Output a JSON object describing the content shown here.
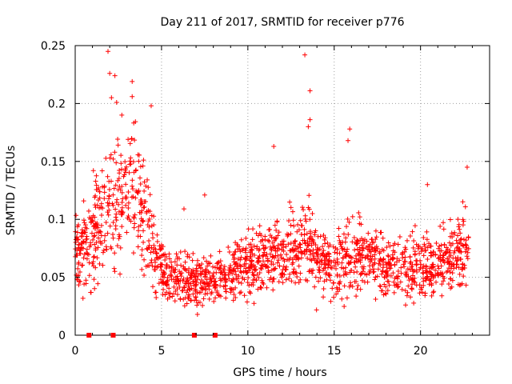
{
  "chart_data": {
    "type": "scatter",
    "title": "Day 211 of 2017, SRMTID for receiver p776",
    "xlabel": "GPS time / hours",
    "ylabel": "SRMTID / TECUs",
    "xlim": [
      0,
      24
    ],
    "ylim": [
      0,
      0.25
    ],
    "grid": true,
    "marker": "+",
    "color": "#ff0000",
    "x_ticks": [
      0,
      5,
      10,
      15,
      20
    ],
    "x_tick_labels": [
      "0",
      "5",
      "10",
      "15",
      "20"
    ],
    "y_ticks": [
      0,
      0.05,
      0.1,
      0.15,
      0.2,
      0.25
    ],
    "y_tick_labels": [
      "0",
      "0.05",
      "0.1",
      "0.15",
      "0.2",
      "0.25"
    ],
    "zero_markers_x": [
      0.8,
      2.2,
      6.9,
      8.1
    ],
    "series": [
      {
        "name": "SRMTID",
        "trend": [
          [
            0.0,
            0.07
          ],
          [
            0.5,
            0.08
          ],
          [
            1.0,
            0.085
          ],
          [
            1.5,
            0.1
          ],
          [
            2.0,
            0.11
          ],
          [
            2.5,
            0.12
          ],
          [
            3.0,
            0.125
          ],
          [
            3.5,
            0.115
          ],
          [
            4.0,
            0.1
          ],
          [
            4.5,
            0.075
          ],
          [
            5.0,
            0.055
          ],
          [
            6.0,
            0.048
          ],
          [
            7.0,
            0.046
          ],
          [
            8.0,
            0.048
          ],
          [
            9.0,
            0.055
          ],
          [
            10.0,
            0.06
          ],
          [
            11.0,
            0.065
          ],
          [
            12.0,
            0.07
          ],
          [
            13.0,
            0.075
          ],
          [
            13.5,
            0.085
          ],
          [
            14.0,
            0.065
          ],
          [
            15.0,
            0.06
          ],
          [
            16.0,
            0.07
          ],
          [
            17.0,
            0.068
          ],
          [
            18.0,
            0.062
          ],
          [
            19.0,
            0.058
          ],
          [
            20.0,
            0.062
          ],
          [
            21.0,
            0.06
          ],
          [
            22.0,
            0.07
          ],
          [
            22.8,
            0.075
          ]
        ],
        "outliers": [
          [
            1.9,
            0.245
          ],
          [
            2.0,
            0.226
          ],
          [
            2.3,
            0.224
          ],
          [
            3.3,
            0.219
          ],
          [
            2.1,
            0.205
          ],
          [
            3.3,
            0.206
          ],
          [
            2.4,
            0.201
          ],
          [
            4.4,
            0.198
          ],
          [
            2.7,
            0.19
          ],
          [
            13.3,
            0.242
          ],
          [
            13.6,
            0.211
          ],
          [
            13.6,
            0.186
          ],
          [
            13.5,
            0.18
          ],
          [
            15.9,
            0.178
          ],
          [
            15.8,
            0.168
          ],
          [
            11.5,
            0.163
          ],
          [
            22.7,
            0.145
          ],
          [
            7.5,
            0.121
          ],
          [
            6.3,
            0.109
          ],
          [
            20.4,
            0.13
          ]
        ]
      }
    ]
  }
}
